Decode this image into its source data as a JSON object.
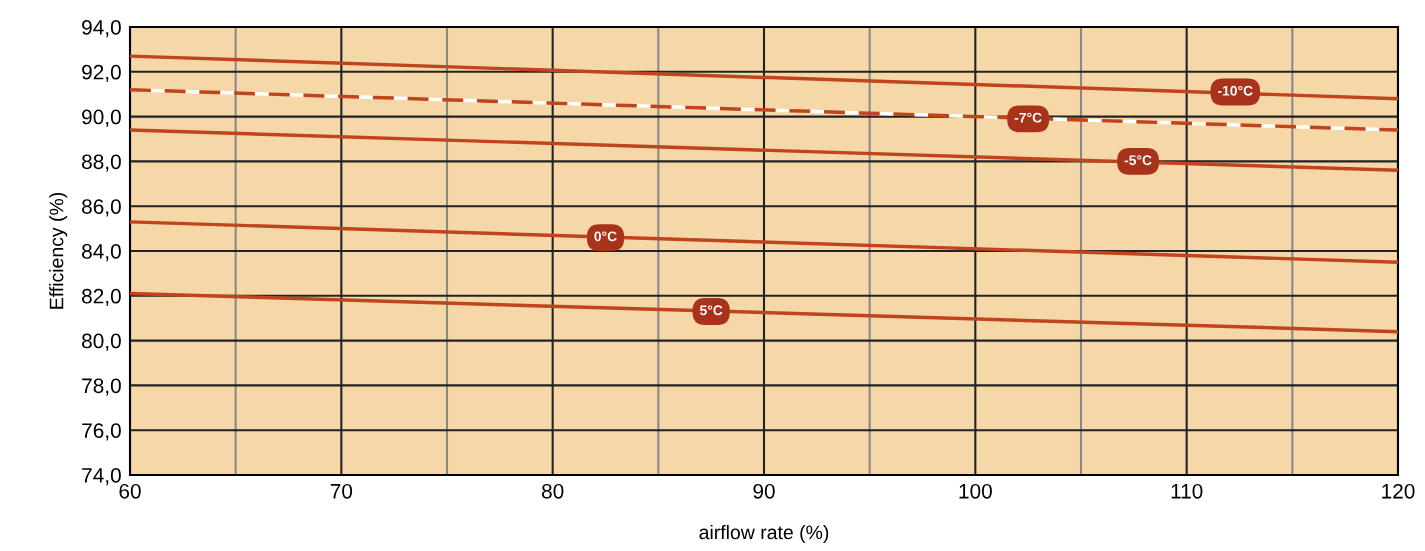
{
  "chart_data": {
    "type": "line",
    "xlabel": "airflow rate (%)",
    "ylabel": "Efficiency (%)",
    "x": [
      60,
      120
    ],
    "series": [
      {
        "color": "#c0451e",
        "values": [
          92.7,
          90.8
        ],
        "line_style": "solid"
      },
      {
        "color": "#c0451e",
        "values": [
          91.2,
          89.4
        ],
        "line_style": "dashed"
      },
      {
        "color": "#c0451e",
        "values": [
          89.4,
          87.6
        ],
        "line_style": "solid"
      },
      {
        "color": "#c0451e",
        "values": [
          85.3,
          83.5
        ],
        "line_style": "solid"
      },
      {
        "color": "#c0451e",
        "values": [
          82.1,
          80.4
        ],
        "line_style": "solid"
      }
    ],
    "annotations": [
      {
        "text": "-10°C",
        "x": 112.3,
        "y": 91.1
      },
      {
        "text": "-7°C",
        "x": 102.5,
        "y": 89.9
      },
      {
        "text": "-5°C",
        "x": 107.7,
        "y": 88.0
      },
      {
        "text": "0°C",
        "x": 82.5,
        "y": 84.6
      },
      {
        "text": "5°C",
        "x": 87.5,
        "y": 81.3
      }
    ],
    "xlim": [
      60,
      120
    ],
    "xticks": [
      60,
      {
        "value": 65,
        "label": null
      },
      70,
      {
        "value": 75,
        "label": null
      },
      80,
      {
        "value": 85,
        "label": null
      },
      90,
      {
        "value": 95,
        "label": null
      },
      100,
      {
        "value": 105,
        "label": null
      },
      110,
      {
        "value": 115,
        "label": null
      },
      120
    ],
    "ylim": [
      74,
      94
    ],
    "yticks": [
      {
        "value": 74,
        "label": "74,0"
      },
      {
        "value": 76,
        "label": "76,0"
      },
      {
        "value": 78,
        "label": "78,0"
      },
      {
        "value": 80,
        "label": "80,0"
      },
      {
        "value": 82,
        "label": "82,0"
      },
      {
        "value": 84,
        "label": "84,0"
      },
      {
        "value": 86,
        "label": "86,0"
      },
      {
        "value": 88,
        "label": "88,0"
      },
      {
        "value": 90,
        "label": "90,0"
      },
      {
        "value": 92,
        "label": "92,0"
      },
      {
        "value": 94,
        "label": "94,0"
      }
    ],
    "grid": true,
    "marker": "none"
  }
}
